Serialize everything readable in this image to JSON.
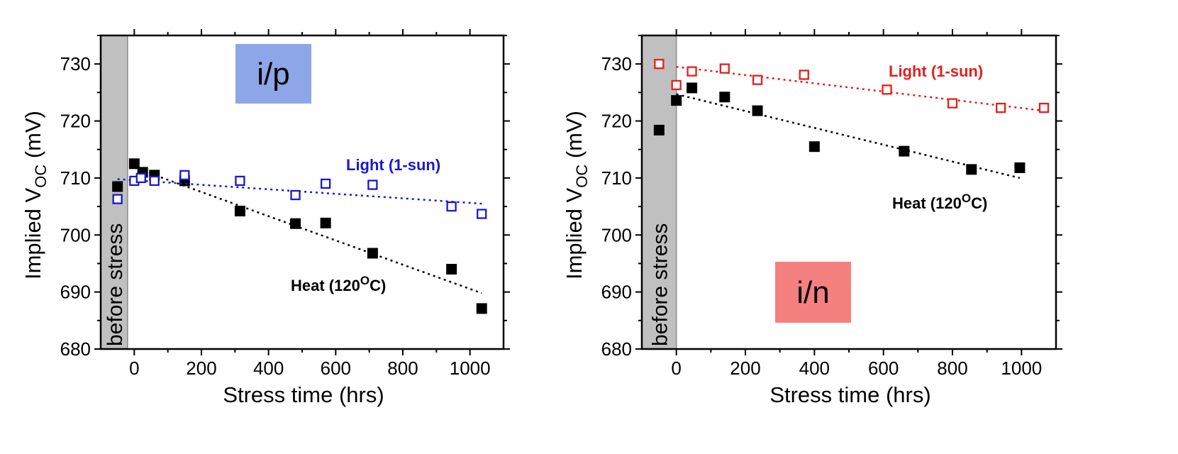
{
  "colors": {
    "heat": "#000000",
    "light_ip": "#1a1acc",
    "light_in": "#e61e1e",
    "before_stress_shade": "#c0c0c0",
    "tag_ip_bg": "#8da6e8",
    "tag_in_bg": "#f58080"
  },
  "chart_data": [
    {
      "type": "scatter",
      "panel_label": "i/p",
      "xlabel": "Stress time (hrs)",
      "ylabel_main": "Implied V",
      "ylabel_sub": "OC",
      "ylabel_unit": " (mV)",
      "xlim": [
        -100,
        1100
      ],
      "ylim": [
        680,
        735
      ],
      "x_ticks": [
        0,
        200,
        400,
        600,
        800,
        1000
      ],
      "y_ticks": [
        680,
        690,
        700,
        710,
        720,
        730
      ],
      "before_stress_region": {
        "x_range": [
          -100,
          -20
        ],
        "label": "before stress"
      },
      "series": [
        {
          "name": "Heat (120",
          "name_sup": "O",
          "name_end": "C)",
          "marker": "filled-square",
          "color": "#000000",
          "x": [
            -50,
            0,
            25,
            60,
            150,
            315,
            480,
            570,
            710,
            945,
            1035
          ],
          "y": [
            708.5,
            712.5,
            711,
            710.5,
            709.5,
            704.2,
            702,
            702.1,
            696.8,
            694,
            687.1
          ],
          "trend": {
            "x": [
              0,
              1035
            ],
            "y": [
              711.8,
              689.8
            ]
          }
        },
        {
          "name": "Light (1-sun)",
          "marker": "open-square",
          "color": "#1a1acc",
          "x": [
            -50,
            0,
            20,
            60,
            150,
            315,
            480,
            570,
            710,
            945,
            1035
          ],
          "y": [
            706.3,
            709.5,
            710,
            709.5,
            710.5,
            709.5,
            707,
            709,
            708.8,
            705,
            703.7
          ],
          "trend": {
            "x": [
              -50,
              1035
            ],
            "y": [
              709.8,
              705.5
            ]
          }
        }
      ]
    },
    {
      "type": "scatter",
      "panel_label": "i/n",
      "xlabel": "Stress time (hrs)",
      "ylabel_main": "Implied V",
      "ylabel_sub": "OC",
      "ylabel_unit": " (mV)",
      "xlim": [
        -100,
        1100
      ],
      "ylim": [
        680,
        735
      ],
      "x_ticks": [
        0,
        200,
        400,
        600,
        800,
        1000
      ],
      "y_ticks": [
        680,
        690,
        700,
        710,
        720,
        730
      ],
      "before_stress_region": {
        "x_range": [
          -100,
          0
        ],
        "label": "before stress"
      },
      "series": [
        {
          "name": "Heat (120",
          "name_sup": "O",
          "name_end": "C)",
          "marker": "filled-square",
          "color": "#000000",
          "x": [
            -50,
            0,
            45,
            140,
            235,
            400,
            660,
            855,
            995
          ],
          "y": [
            718.4,
            723.6,
            725.8,
            724.2,
            721.8,
            715.5,
            714.7,
            711.5,
            711.8
          ],
          "trend": {
            "x": [
              0,
              995
            ],
            "y": [
              724.7,
              710
            ]
          }
        },
        {
          "name": "Light (1-sun)",
          "marker": "open-square",
          "color": "#e61e1e",
          "x": [
            -50,
            0,
            45,
            140,
            235,
            370,
            610,
            800,
            940,
            1065
          ],
          "y": [
            730,
            726.3,
            728.7,
            729.2,
            727.2,
            728.1,
            725.5,
            723.1,
            722.3,
            722.3
          ],
          "trend": {
            "x": [
              0,
              1065
            ],
            "y": [
              729.5,
              721.8
            ]
          }
        }
      ]
    }
  ]
}
